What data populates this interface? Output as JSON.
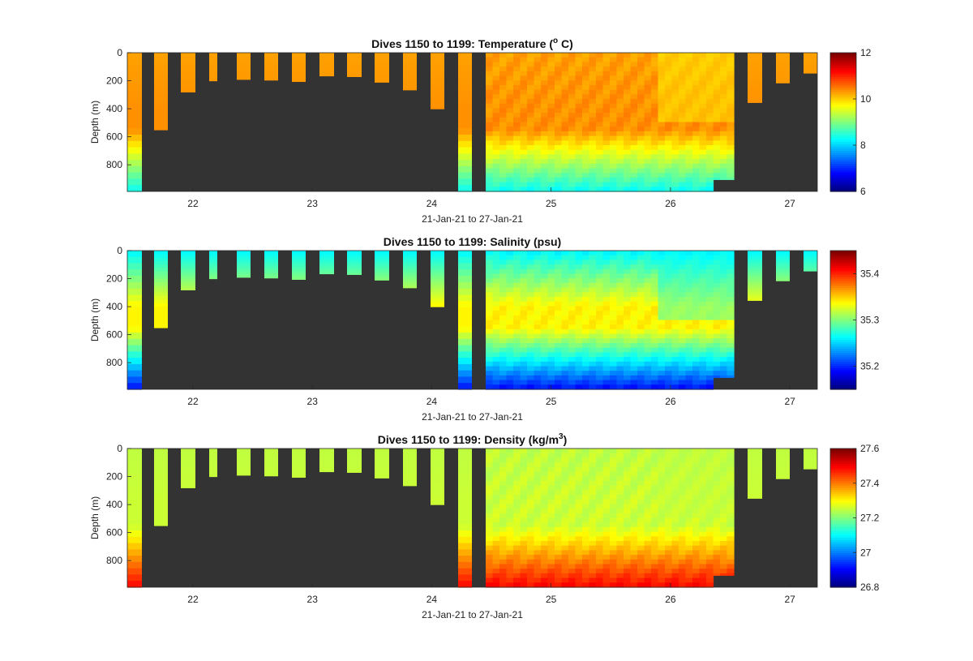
{
  "chart_data": [
    {
      "type": "heatmap",
      "title_parts": [
        "Dives 1150 to 1199: Temperature (",
        "o",
        " C)"
      ],
      "xlabel": "21-Jan-21 to 27-Jan-21",
      "ylabel": "Depth (m)",
      "x_ticks": [
        "22",
        "23",
        "24",
        "25",
        "26",
        "27"
      ],
      "y_ticks": [
        "0",
        "200",
        "400",
        "600",
        "800"
      ],
      "xlim": [
        21.45,
        27.23
      ],
      "ylim": [
        0,
        990
      ],
      "colorbar": {
        "range": [
          6,
          12
        ],
        "ticks": [
          "6",
          "8",
          "10",
          "12"
        ]
      },
      "profile_values": {
        "surface": 10.3,
        "mid": 10.4,
        "deep": 8.3
      }
    },
    {
      "type": "heatmap",
      "title_parts": [
        "Dives 1150 to 1199: Salinity (psu)",
        "",
        ""
      ],
      "xlabel": "21-Jan-21 to 27-Jan-21",
      "ylabel": "Depth (m)",
      "x_ticks": [
        "22",
        "23",
        "24",
        "25",
        "26",
        "27"
      ],
      "y_ticks": [
        "0",
        "200",
        "400",
        "600",
        "800"
      ],
      "xlim": [
        21.45,
        27.23
      ],
      "ylim": [
        0,
        990
      ],
      "colorbar": {
        "range": [
          35.15,
          35.45
        ],
        "ticks": [
          "35.2",
          "35.3",
          "35.4"
        ]
      },
      "profile_values": {
        "surface": 35.26,
        "mid": 35.34,
        "deep": 35.19
      }
    },
    {
      "type": "heatmap",
      "title_parts": [
        "Dives 1150 to 1199: Density (kg/m",
        "3",
        ")"
      ],
      "xlabel": "21-Jan-21 to 27-Jan-21",
      "ylabel": "Depth (m)",
      "x_ticks": [
        "22",
        "23",
        "24",
        "25",
        "26",
        "27"
      ],
      "y_ticks": [
        "0",
        "200",
        "400",
        "600",
        "800"
      ],
      "xlim": [
        21.45,
        27.23
      ],
      "ylim": [
        0,
        990
      ],
      "colorbar": {
        "range": [
          26.8,
          27.6
        ],
        "ticks": [
          "26.8",
          "27",
          "27.2",
          "27.4",
          "27.6"
        ]
      },
      "profile_values": {
        "surface": 27.25,
        "mid": 27.26,
        "deep": 27.5
      }
    }
  ]
}
